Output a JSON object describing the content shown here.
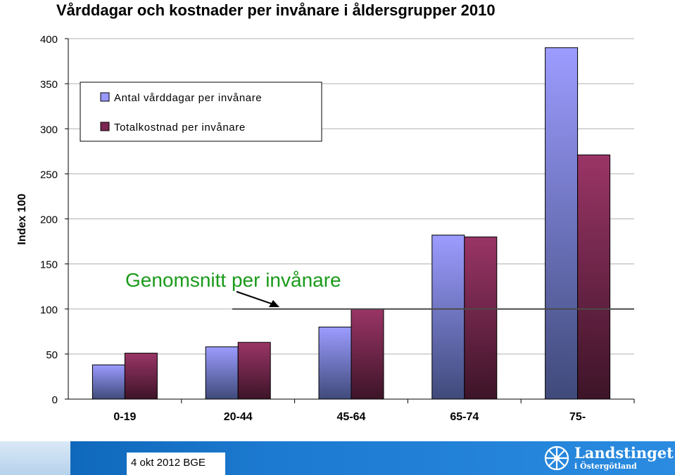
{
  "chart_data": {
    "type": "bar",
    "title": "Vårddagar och kostnader per invånare i åldersgrupper 2010",
    "ylabel": "Index 100",
    "xlabel": "",
    "ylim": [
      0,
      400
    ],
    "yticks": [
      0,
      50,
      100,
      150,
      200,
      250,
      300,
      350,
      400
    ],
    "grid": true,
    "legend_position": "top-left",
    "categories": [
      "0-19",
      "20-44",
      "45-64",
      "65-74",
      "75-"
    ],
    "series": [
      {
        "name": "Antal vårddagar per invånare",
        "values": [
          38,
          58,
          80,
          182,
          390
        ],
        "color": "#9999ff"
      },
      {
        "name": "Totalkostnad per invånare",
        "values": [
          51,
          63,
          100,
          180,
          271
        ],
        "color": "#993366"
      }
    ],
    "reference_line": {
      "value": 100
    },
    "annotation": {
      "text": "Genomsnitt per invånare",
      "color": "#1a9a1a"
    }
  },
  "footer": {
    "date": "4 okt  2012  BGE",
    "logo_text": "Landstinget",
    "logo_subtext": "i Östergötland"
  }
}
